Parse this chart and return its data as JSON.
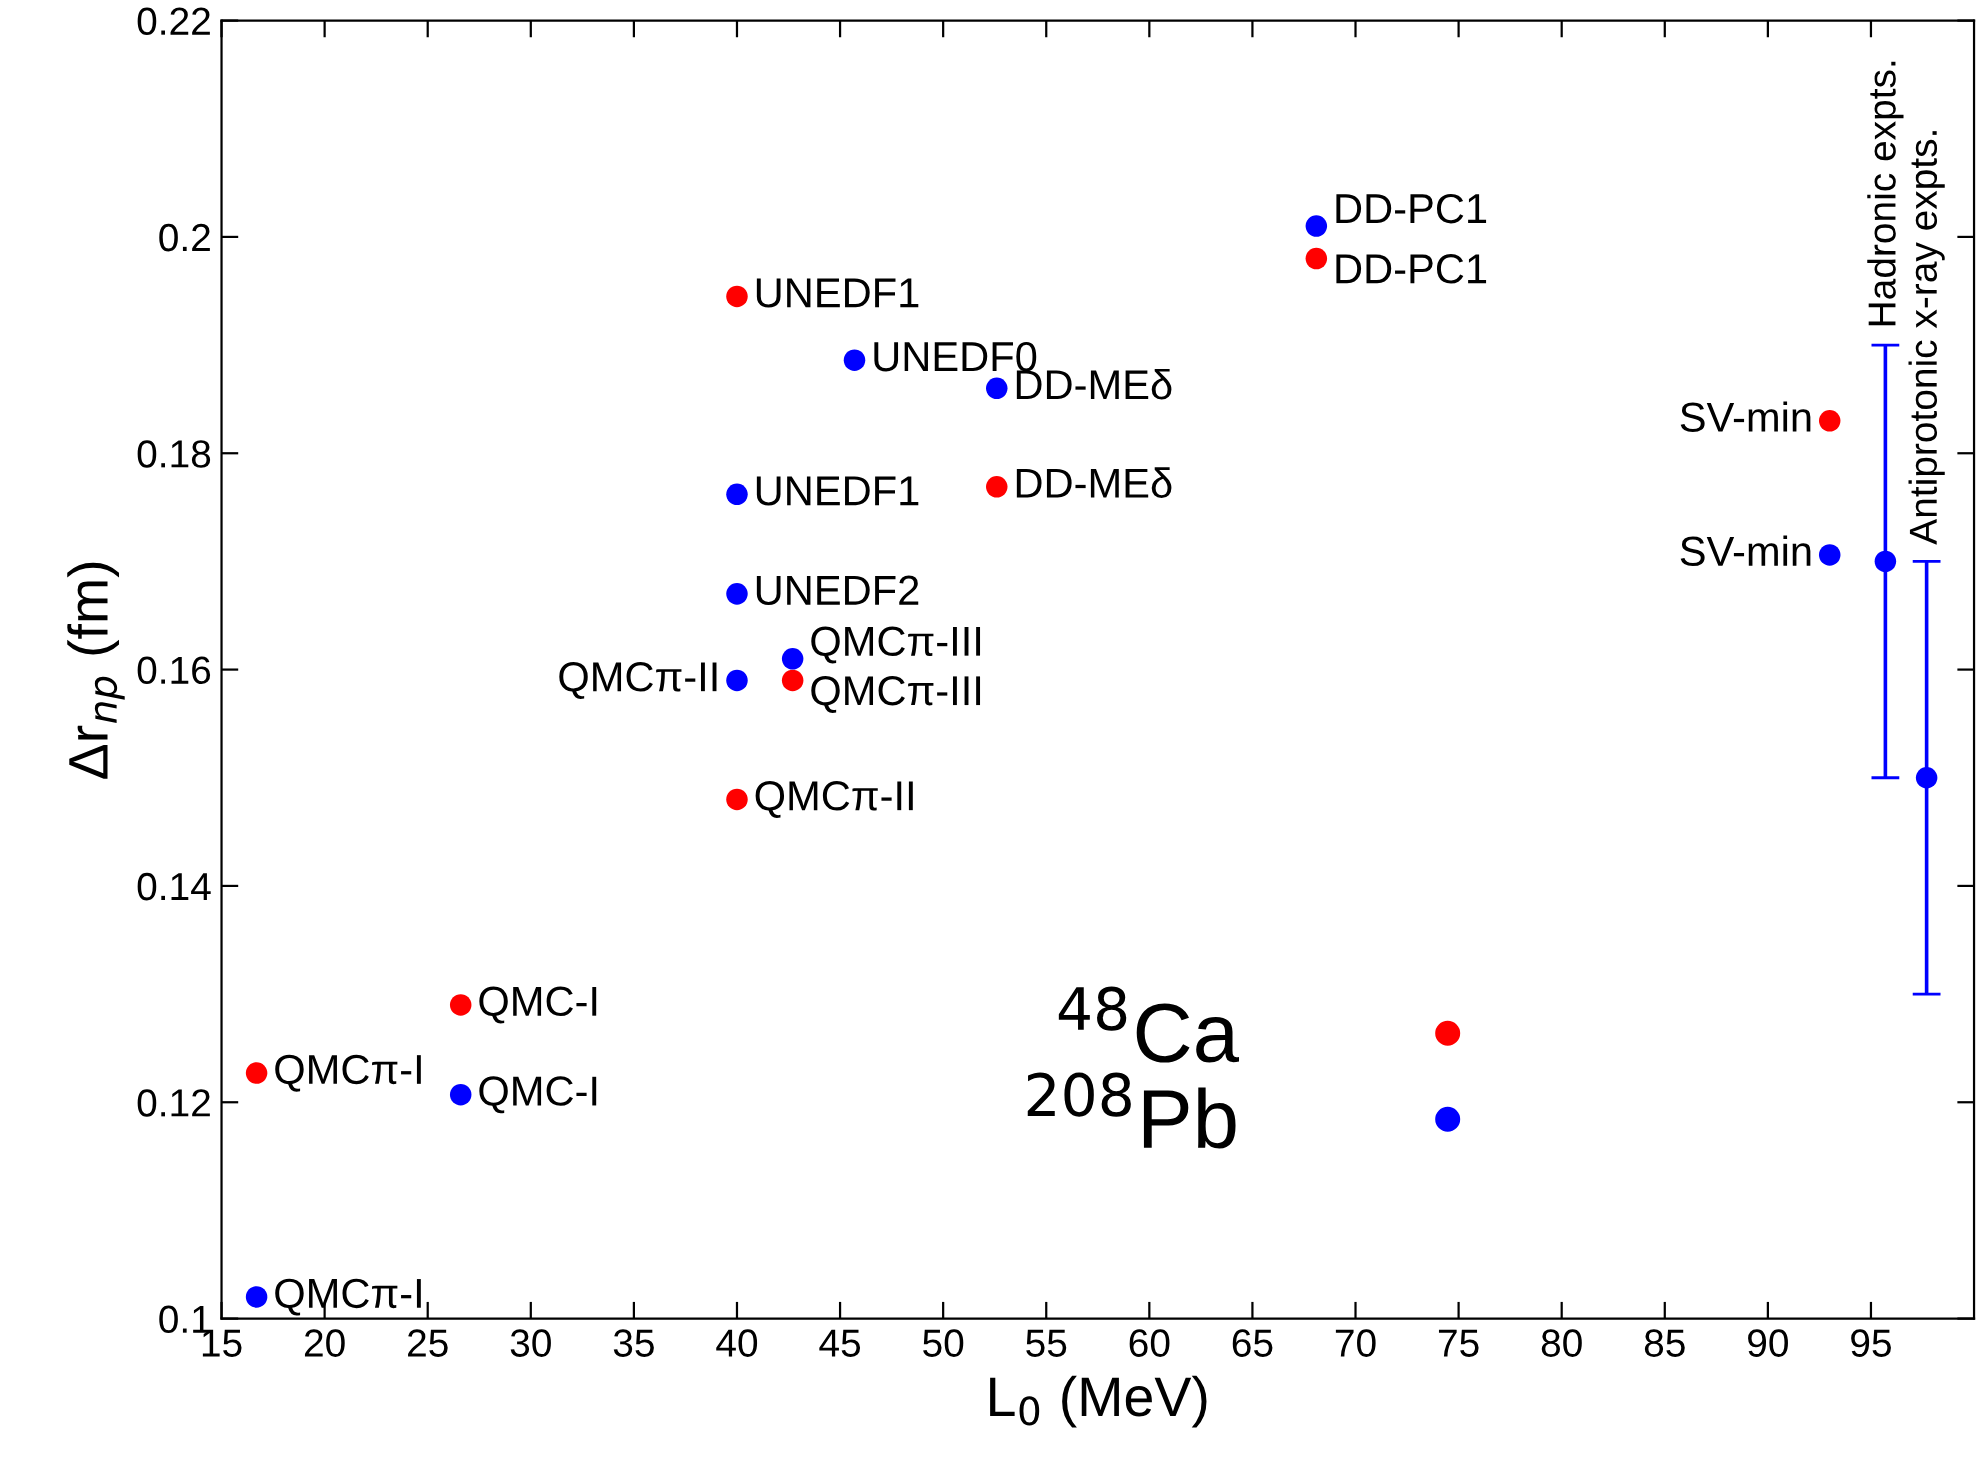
{
  "chart_data": {
    "type": "scatter",
    "xlabel": "L$_{0}$ (MeV)",
    "ylabel": "Δr$_{np}$ (fm)",
    "xlim": [
      15,
      100
    ],
    "xticks": [
      15,
      20,
      25,
      30,
      35,
      40,
      45,
      50,
      55,
      60,
      65,
      70,
      75,
      80,
      85,
      90,
      95
    ],
    "ylim": [
      0.1,
      0.22
    ],
    "yticks": [
      0.1,
      0.12,
      0.14,
      0.16,
      0.18,
      0.2,
      0.22
    ],
    "grid": false,
    "legend": "bottom right",
    "marker": "circle",
    "series": [
      {
        "name": "$^{48}$Ca",
        "color": "#ff0000",
        "x": [
          40,
          68.1,
          52.6,
          93,
          42.7,
          40,
          26.6,
          16.7
        ],
        "values": [
          0.1945,
          0.198,
          0.1769,
          0.183,
          0.159,
          0.148,
          0.129,
          0.1227
        ]
      },
      {
        "name": "$^{208}$Pb",
        "color": "#0000ff",
        "x": [
          68.1,
          45.7,
          52.6,
          40,
          40,
          42.7,
          40,
          93,
          26.6,
          16.7
        ],
        "values": [
          0.201,
          0.1886,
          0.186,
          0.1762,
          0.167,
          0.161,
          0.159,
          0.1706,
          0.1207,
          0.102
        ]
      },
      {
        "color": "#0000ff",
        "x": [
          95.7,
          97.7
        ],
        "values": [
          0.17,
          0.15
        ],
        "errors": [
          [
            0.15,
            0.19
          ],
          [
            0.13,
            0.17
          ]
        ]
      }
    ],
    "annotations": [
      {
        "text": "UNEDF1",
        "x": 40,
        "y": 0.1945
      },
      {
        "text": "DD-PC1",
        "x": 68.1,
        "y": 0.198
      },
      {
        "text": "DD-MEδ",
        "x": 52.6,
        "y": 0.1769
      },
      {
        "text": "SV-min",
        "x": 93,
        "y": 0.183
      },
      {
        "text": "QMCπ-III",
        "x": 42.7,
        "y": 0.159
      },
      {
        "text": "QMCπ-II",
        "x": 40,
        "y": 0.148
      },
      {
        "text": "QMC-I",
        "x": 26.6,
        "y": 0.129
      },
      {
        "text": "QMCπ-I",
        "x": 16.7,
        "y": 0.1227
      },
      {
        "text": "DD-PC1",
        "x": 68.1,
        "y": 0.201
      },
      {
        "text": "UNEDF0",
        "x": 45.7,
        "y": 0.1886
      },
      {
        "text": "DD-MEδ",
        "x": 52.6,
        "y": 0.186
      },
      {
        "text": "UNEDF1",
        "x": 40,
        "y": 0.1762
      },
      {
        "text": "UNEDF2",
        "x": 40,
        "y": 0.167
      },
      {
        "text": "QMCπ-III",
        "x": 42.7,
        "y": 0.161
      },
      {
        "text": "QMCπ-II",
        "x": 40,
        "y": 0.159
      },
      {
        "text": "SV-min",
        "x": 93,
        "y": 0.1706
      },
      {
        "text": "QMC-I",
        "x": 26.6,
        "y": 0.1207
      },
      {
        "text": "QMCπ-I",
        "x": 16.7,
        "y": 0.102
      },
      {
        "text": "Hadronic expts.",
        "x": 95.7,
        "y": 0.19
      },
      {
        "text": "Antiprotonic x-ray expts.",
        "x": 97.7,
        "y": 0.17
      }
    ]
  }
}
